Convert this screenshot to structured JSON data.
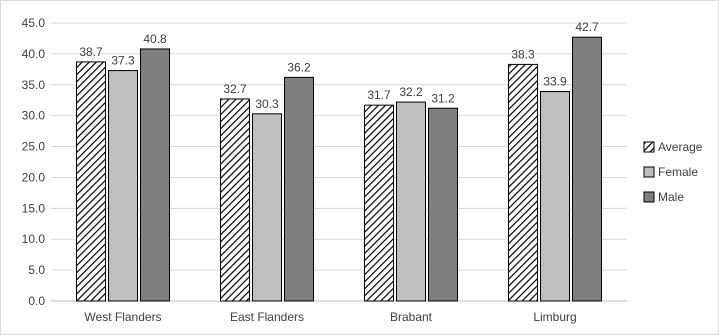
{
  "chart_data": {
    "type": "bar",
    "categories": [
      "West Flanders",
      "East Flanders",
      "Brabant",
      "Limburg"
    ],
    "series": [
      {
        "name": "Average",
        "values": [
          38.7,
          32.7,
          31.7,
          38.3
        ],
        "color": "#ffffff",
        "pattern": "diagonal-hatch"
      },
      {
        "name": "Female",
        "values": [
          37.3,
          30.3,
          32.2,
          33.9
        ],
        "color": "#bfbfbf",
        "pattern": "solid"
      },
      {
        "name": "Male",
        "values": [
          40.8,
          36.2,
          31.2,
          42.7
        ],
        "color": "#7f7f7f",
        "pattern": "solid"
      }
    ],
    "yticks": [
      "0.0",
      "5.0",
      "10.0",
      "15.0",
      "20.0",
      "25.0",
      "30.0",
      "35.0",
      "40.0",
      "45.0"
    ],
    "ylim": [
      0,
      45
    ],
    "title": "",
    "xlabel": "",
    "ylabel": "",
    "grid": true,
    "legend": "right",
    "data_labels": true
  }
}
